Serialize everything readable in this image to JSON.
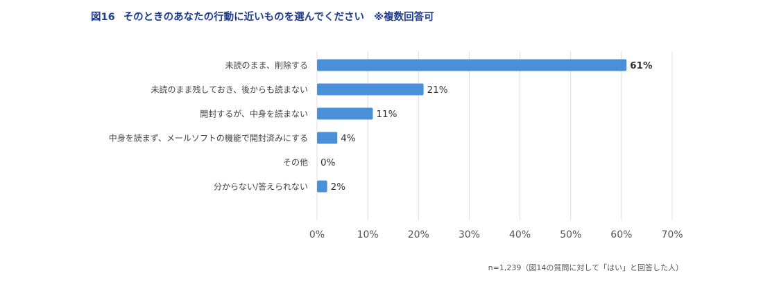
{
  "title": {
    "figure_label": "図16",
    "text": "そのときのあなたの行動に近いものを選んでください",
    "note": "※複数回答可"
  },
  "footnote": "n=1,239（図14の質問に対して「はい」と回答した人）",
  "colors": {
    "bar": "#4a90d9",
    "grid": "#dddddd",
    "label": "#444444",
    "title": "#1f3c8f"
  },
  "chart_data": {
    "type": "bar",
    "orientation": "horizontal",
    "categories": [
      "未読のまま、削除する",
      "未読のまま残しておき、後からも読まない",
      "開封するが、中身を読まない",
      "中身を読まず、メールソフトの機能で開封済みにする",
      "その他",
      "分からない/答えられない"
    ],
    "values": [
      61,
      21,
      11,
      4,
      0,
      2
    ],
    "value_labels": [
      "61%",
      "21%",
      "11%",
      "4%",
      "0%",
      "2%"
    ],
    "bold_value_index": 0,
    "xlim": [
      0,
      70
    ],
    "xticks": [
      0,
      10,
      20,
      30,
      40,
      50,
      60,
      70
    ],
    "xtick_labels": [
      "0%",
      "10%",
      "20%",
      "30%",
      "40%",
      "50%",
      "60%",
      "70%"
    ],
    "grid": true,
    "legend": false
  }
}
